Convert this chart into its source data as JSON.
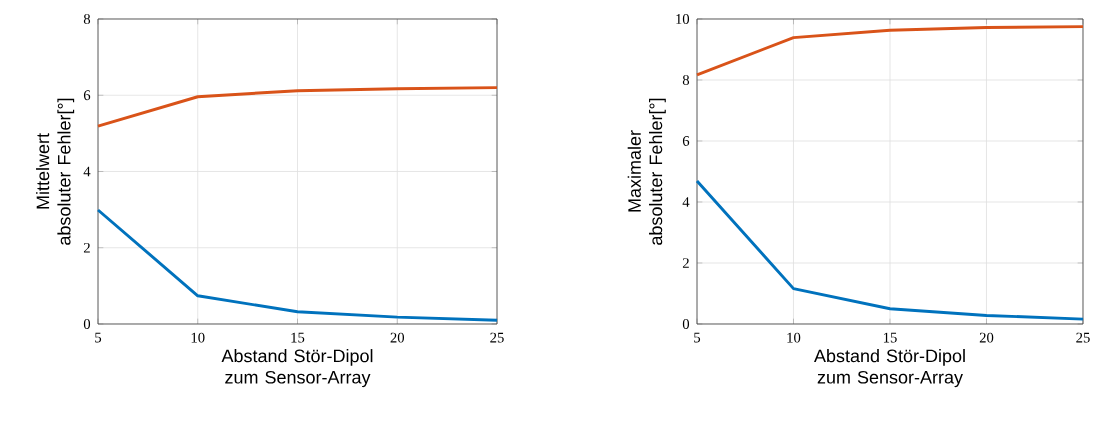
{
  "chart_data": [
    {
      "type": "line",
      "x": [
        5,
        10,
        15,
        20,
        25
      ],
      "xlim": [
        5,
        25
      ],
      "xticks": [
        5,
        10,
        15,
        20,
        25
      ],
      "ylim": [
        0,
        8
      ],
      "yticks": [
        0,
        2,
        4,
        6,
        8
      ],
      "xlabel": "Abstand Stör-Dipol zum Sensor-Array",
      "ylabel": "Mittelwert absoluter Fehler[°]",
      "grid": true,
      "series": [
        {
          "color": "#0072bd",
          "values": [
            2.99,
            0.74,
            0.32,
            0.18,
            0.1
          ]
        },
        {
          "color": "#d95319",
          "values": [
            5.19,
            5.96,
            6.12,
            6.17,
            6.2
          ]
        }
      ]
    },
    {
      "type": "line",
      "x": [
        5,
        10,
        15,
        20,
        25
      ],
      "xlim": [
        5,
        25
      ],
      "xticks": [
        5,
        10,
        15,
        20,
        25
      ],
      "ylim": [
        0,
        10
      ],
      "yticks": [
        0,
        2,
        4,
        6,
        8,
        10
      ],
      "xlabel": "Abstand Stör-Dipol zum Sensor-Array",
      "ylabel": "Maximaler absoluter Fehler[°]",
      "grid": true,
      "series": [
        {
          "color": "#0072bd",
          "values": [
            4.69,
            1.16,
            0.5,
            0.28,
            0.16
          ]
        },
        {
          "color": "#d95319",
          "values": [
            8.17,
            9.39,
            9.63,
            9.72,
            9.75
          ]
        }
      ]
    }
  ]
}
